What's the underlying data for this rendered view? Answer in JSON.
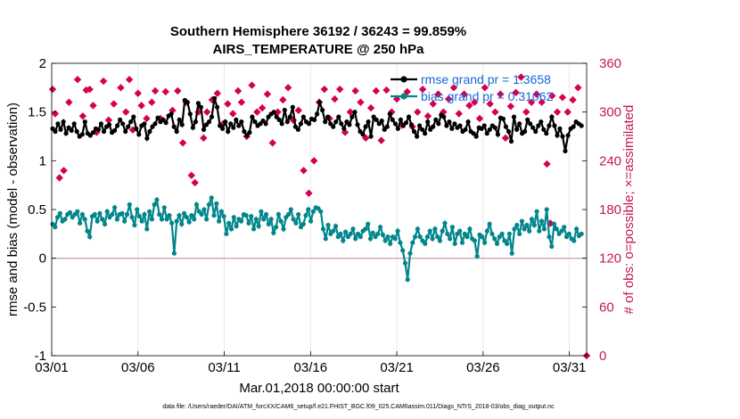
{
  "chart_data": {
    "type": "line",
    "title_line1": "Southern Hemisphere 36192 / 36243 = 99.859%",
    "title_line2": "AIRS_TEMPERATURE @ 250 hPa",
    "xlabel": "Mar.01,2018 00:00:00 start",
    "ylabel": "rmse and bias (model - observation)",
    "ylabel_right": "# of obs: o=possible; ×=assimilated",
    "ylim": [
      -1,
      2
    ],
    "ylim_right": [
      0,
      360
    ],
    "xlim": [
      1,
      32
    ],
    "y_ticks": [
      "-1",
      "-0.5",
      "0",
      "0.5",
      "1",
      "1.5",
      "2"
    ],
    "y_tick_values": [
      -1,
      -0.5,
      0,
      0.5,
      1,
      1.5,
      2
    ],
    "y_ticks_right": [
      "0",
      "60",
      "120",
      "180",
      "240",
      "300",
      "360"
    ],
    "y_tick_values_right": [
      0,
      60,
      120,
      180,
      240,
      300,
      360
    ],
    "x_ticks": [
      "03/01",
      "03/06",
      "03/11",
      "03/16",
      "03/21",
      "03/26",
      "03/31"
    ],
    "x_tick_values": [
      1,
      6,
      11,
      16,
      21,
      26,
      31
    ],
    "zero_line": 0,
    "series": [
      {
        "name": "rmse grand pr = 1.3658",
        "color": "#000000",
        "values": [
          1.33,
          1.3,
          1.38,
          1.32,
          1.4,
          1.28,
          1.34,
          1.31,
          1.38,
          1.3,
          1.25,
          1.27,
          1.4,
          1.28,
          1.26,
          1.29,
          1.33,
          1.32,
          1.38,
          1.3,
          1.35,
          1.37,
          1.29,
          1.31,
          1.36,
          1.42,
          1.38,
          1.3,
          1.35,
          1.4,
          1.45,
          1.33,
          1.27,
          1.36,
          1.38,
          1.23,
          1.3,
          1.35,
          1.38,
          1.44,
          1.4,
          1.42,
          1.39,
          1.46,
          1.48,
          1.35,
          1.3,
          1.42,
          1.37,
          1.62,
          1.6,
          1.48,
          1.34,
          1.4,
          1.59,
          1.55,
          1.32,
          1.37,
          1.4,
          1.45,
          1.64,
          1.55,
          1.36,
          1.33,
          1.4,
          1.3,
          1.38,
          1.34,
          1.42,
          1.36,
          1.4,
          1.3,
          1.26,
          1.29,
          1.45,
          1.4,
          1.36,
          1.38,
          1.41,
          1.38,
          1.45,
          1.48,
          1.5,
          1.45,
          1.42,
          1.38,
          1.52,
          1.4,
          1.45,
          1.55,
          1.35,
          1.32,
          1.38,
          1.45,
          1.4,
          1.38,
          1.43,
          1.42,
          1.48,
          1.6,
          1.52,
          1.4,
          1.45,
          1.38,
          1.35,
          1.4,
          1.45,
          1.38,
          1.33,
          1.4,
          1.37,
          1.45,
          1.5,
          1.37,
          1.3,
          1.27,
          1.35,
          1.4,
          1.25,
          1.45,
          1.42,
          1.38,
          1.41,
          1.32,
          1.35,
          1.48,
          1.42,
          1.38,
          1.33,
          1.42,
          1.36,
          1.39,
          1.45,
          1.37,
          1.3,
          1.25,
          1.36,
          1.32,
          1.28,
          1.4,
          1.32,
          1.35,
          1.42,
          1.38,
          1.47,
          1.45,
          1.36,
          1.4,
          1.33,
          1.38,
          1.34,
          1.36,
          1.3,
          1.32,
          1.4,
          1.3,
          1.28,
          1.25,
          1.34,
          1.33,
          1.36,
          1.28,
          1.32,
          1.36,
          1.34,
          1.27,
          1.44,
          1.43,
          1.35,
          1.3,
          1.2,
          1.45,
          1.32,
          1.38,
          1.28,
          1.3,
          1.42,
          1.38,
          1.34,
          1.3,
          1.36,
          1.4,
          1.32,
          1.28,
          1.36,
          1.45,
          1.36,
          1.26,
          1.33,
          1.25,
          1.1,
          1.26,
          1.33,
          1.35,
          1.4,
          1.38,
          1.36
        ]
      },
      {
        "name": "bias grand pr = 0.31062",
        "color": "#00868b",
        "values": [
          0.35,
          0.32,
          0.42,
          0.46,
          0.38,
          0.4,
          0.45,
          0.47,
          0.42,
          0.45,
          0.48,
          0.36,
          0.45,
          0.4,
          0.28,
          0.22,
          0.43,
          0.45,
          0.38,
          0.46,
          0.4,
          0.35,
          0.48,
          0.42,
          0.45,
          0.52,
          0.4,
          0.45,
          0.46,
          0.38,
          0.45,
          0.55,
          0.42,
          0.34,
          0.5,
          0.43,
          0.38,
          0.45,
          0.3,
          0.48,
          0.4,
          0.55,
          0.6,
          0.45,
          0.4,
          0.52,
          0.4,
          0.44,
          0.36,
          0.05,
          0.38,
          0.44,
          0.35,
          0.46,
          0.42,
          0.37,
          0.44,
          0.4,
          0.55,
          0.48,
          0.45,
          0.5,
          0.4,
          0.55,
          0.62,
          0.44,
          0.56,
          0.38,
          0.48,
          0.43,
          0.25,
          0.36,
          0.3,
          0.42,
          0.33,
          0.4,
          0.38,
          0.45,
          0.44,
          0.36,
          0.43,
          0.3,
          0.4,
          0.33,
          0.48,
          0.4,
          0.45,
          0.35,
          0.4,
          0.26,
          0.32,
          0.45,
          0.38,
          0.3,
          0.42,
          0.45,
          0.5,
          0.4,
          0.36,
          0.45,
          0.32,
          0.35,
          0.44,
          0.5,
          0.38,
          0.48,
          0.52,
          0.51,
          0.48,
          0.3,
          0.2,
          0.34,
          0.25,
          0.28,
          0.33,
          0.22,
          0.25,
          0.18,
          0.27,
          0.22,
          0.25,
          0.3,
          0.2,
          0.25,
          0.22,
          0.28,
          0.3,
          0.35,
          0.2,
          0.26,
          0.22,
          0.25,
          0.32,
          0.24,
          0.18,
          0.22,
          0.15,
          0.22,
          0.2,
          0.28,
          0.16,
          0.08,
          -0.05,
          -0.22,
          0.05,
          0.16,
          0.22,
          0.3,
          0.22,
          0.18,
          0.15,
          0.22,
          0.28,
          0.2,
          0.3,
          0.22,
          0.18,
          0.28,
          0.36,
          0.25,
          0.2,
          0.32,
          0.15,
          0.25,
          0.28,
          0.16,
          0.25,
          0.22,
          0.3,
          0.2,
          0.18,
          0.02,
          0.24,
          0.22,
          0.16,
          0.28,
          0.35,
          0.25,
          0.2,
          0.15,
          0.22,
          0.25,
          0.18,
          0.15,
          0.25,
          0.05,
          0.3,
          0.34,
          0.25,
          0.38,
          0.3,
          0.34,
          0.28,
          0.4,
          0.34,
          0.48,
          0.28,
          0.38,
          0.3,
          0.5,
          0.22,
          0.12,
          0.35,
          0.3,
          0.25,
          0.28,
          0.32,
          0.22,
          0.25,
          0.2,
          0.18,
          0.3,
          0.23,
          0.25
        ]
      }
    ],
    "obs_possible": [
      {
        "x": 1.05,
        "y": 328
      },
      {
        "x": 1.2,
        "y": 298
      },
      {
        "x": 1.45,
        "y": 219
      },
      {
        "x": 1.7,
        "y": 228
      },
      {
        "x": 2.0,
        "y": 312
      },
      {
        "x": 2.5,
        "y": 340
      },
      {
        "x": 2.8,
        "y": 295
      },
      {
        "x": 3.0,
        "y": 327
      },
      {
        "x": 3.2,
        "y": 328
      },
      {
        "x": 3.4,
        "y": 308
      },
      {
        "x": 3.6,
        "y": 275
      },
      {
        "x": 4.0,
        "y": 338
      },
      {
        "x": 4.3,
        "y": 290
      },
      {
        "x": 4.6,
        "y": 310
      },
      {
        "x": 5.0,
        "y": 330
      },
      {
        "x": 5.3,
        "y": 300
      },
      {
        "x": 5.5,
        "y": 340
      },
      {
        "x": 5.7,
        "y": 278
      },
      {
        "x": 6.0,
        "y": 323
      },
      {
        "x": 6.2,
        "y": 308
      },
      {
        "x": 6.5,
        "y": 292
      },
      {
        "x": 6.8,
        "y": 312
      },
      {
        "x": 7.0,
        "y": 326
      },
      {
        "x": 7.3,
        "y": 292
      },
      {
        "x": 7.6,
        "y": 325
      },
      {
        "x": 8.0,
        "y": 302
      },
      {
        "x": 8.3,
        "y": 326
      },
      {
        "x": 8.6,
        "y": 262
      },
      {
        "x": 8.8,
        "y": 312
      },
      {
        "x": 9.1,
        "y": 222
      },
      {
        "x": 9.3,
        "y": 213
      },
      {
        "x": 9.5,
        "y": 300
      },
      {
        "x": 9.8,
        "y": 268
      },
      {
        "x": 10.0,
        "y": 300
      },
      {
        "x": 10.3,
        "y": 315
      },
      {
        "x": 10.6,
        "y": 323
      },
      {
        "x": 10.9,
        "y": 285
      },
      {
        "x": 11.2,
        "y": 310
      },
      {
        "x": 11.5,
        "y": 298
      },
      {
        "x": 11.8,
        "y": 326
      },
      {
        "x": 12.0,
        "y": 312
      },
      {
        "x": 12.3,
        "y": 270
      },
      {
        "x": 12.6,
        "y": 333
      },
      {
        "x": 12.9,
        "y": 300
      },
      {
        "x": 13.2,
        "y": 305
      },
      {
        "x": 13.5,
        "y": 322
      },
      {
        "x": 13.8,
        "y": 262
      },
      {
        "x": 14.1,
        "y": 300
      },
      {
        "x": 14.4,
        "y": 315
      },
      {
        "x": 14.7,
        "y": 330
      },
      {
        "x": 15.0,
        "y": 290
      },
      {
        "x": 15.3,
        "y": 302
      },
      {
        "x": 15.6,
        "y": 228
      },
      {
        "x": 15.9,
        "y": 200
      },
      {
        "x": 16.2,
        "y": 240
      },
      {
        "x": 16.5,
        "y": 312
      },
      {
        "x": 16.8,
        "y": 328
      },
      {
        "x": 17.1,
        "y": 292
      },
      {
        "x": 17.4,
        "y": 316
      },
      {
        "x": 17.7,
        "y": 328
      },
      {
        "x": 18.0,
        "y": 275
      },
      {
        "x": 18.3,
        "y": 300
      },
      {
        "x": 18.6,
        "y": 326
      },
      {
        "x": 18.9,
        "y": 312
      },
      {
        "x": 19.2,
        "y": 268
      },
      {
        "x": 19.5,
        "y": 305
      },
      {
        "x": 19.8,
        "y": 326
      },
      {
        "x": 20.1,
        "y": 265
      },
      {
        "x": 20.4,
        "y": 327
      },
      {
        "x": 20.7,
        "y": 300
      },
      {
        "x": 21.0,
        "y": 316
      },
      {
        "x": 21.3,
        "y": 284
      },
      {
        "x": 21.6,
        "y": 325
      },
      {
        "x": 21.9,
        "y": 282
      },
      {
        "x": 22.2,
        "y": 300
      },
      {
        "x": 22.5,
        "y": 328
      },
      {
        "x": 22.8,
        "y": 295
      },
      {
        "x": 23.1,
        "y": 310
      },
      {
        "x": 23.4,
        "y": 322
      },
      {
        "x": 23.7,
        "y": 300
      },
      {
        "x": 24.0,
        "y": 316
      },
      {
        "x": 24.3,
        "y": 330
      },
      {
        "x": 24.6,
        "y": 298
      },
      {
        "x": 24.9,
        "y": 322
      },
      {
        "x": 25.2,
        "y": 308
      },
      {
        "x": 25.5,
        "y": 312
      },
      {
        "x": 25.8,
        "y": 292
      },
      {
        "x": 26.1,
        "y": 330
      },
      {
        "x": 26.4,
        "y": 310
      },
      {
        "x": 26.7,
        "y": 300
      },
      {
        "x": 27.0,
        "y": 322
      },
      {
        "x": 27.3,
        "y": 268
      },
      {
        "x": 27.6,
        "y": 307
      },
      {
        "x": 27.9,
        "y": 324
      },
      {
        "x": 28.2,
        "y": 343
      },
      {
        "x": 28.5,
        "y": 300
      },
      {
        "x": 28.8,
        "y": 312
      },
      {
        "x": 29.1,
        "y": 322
      },
      {
        "x": 29.4,
        "y": 312
      },
      {
        "x": 29.7,
        "y": 236
      },
      {
        "x": 30.0,
        "y": 320
      },
      {
        "x": 30.3,
        "y": 300
      },
      {
        "x": 30.6,
        "y": 318
      },
      {
        "x": 30.9,
        "y": 300
      },
      {
        "x": 31.2,
        "y": 315
      },
      {
        "x": 31.5,
        "y": 330
      },
      {
        "x": 29.9,
        "y": 163
      }
    ],
    "obs_assimilated": [
      {
        "x": 32.0,
        "y": 0
      }
    ],
    "legend": {
      "location": "top-right",
      "entries": [
        "rmse grand pr = 1.3658",
        "bias grand pr = 0.31062"
      ]
    },
    "marker_color": "#d6004e"
  },
  "footer": {
    "data_file": "data file: /Users/raeder/DAI/ATM_forcXX/CAM6_setup/f.e21.FHIST_BGC.f09_025.CAM6assim.011/Diags_NTrS_2018-03/obs_diag_output.nc"
  }
}
